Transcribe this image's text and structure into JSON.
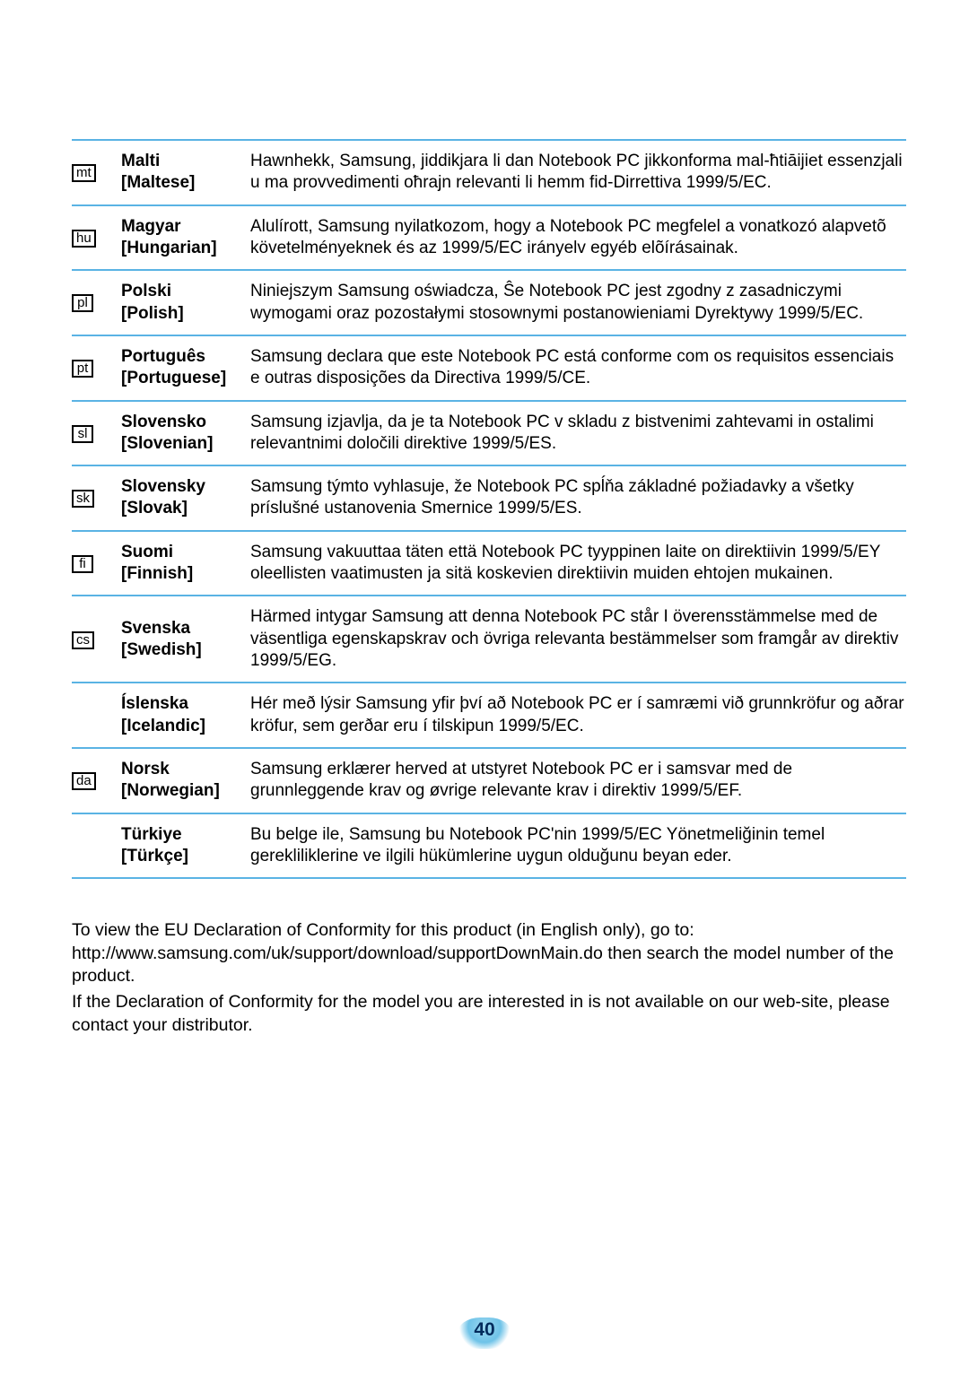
{
  "table": {
    "row_border_color": "#5ab3e4",
    "rows": [
      {
        "code": "mt",
        "icon_valign": "mid",
        "lang_native": "Malti",
        "lang_english": "[Maltese]",
        "text": "Hawnhekk, Samsung, jiddikjara li dan Notebook PC jikkonforma mal-ħtiāijiet essenzjali u ma provvedimenti oħrajn relevanti li hemm fid-Dirrettiva 1999/5/EC."
      },
      {
        "code": "hu",
        "icon_valign": "mid",
        "lang_native": "Magyar",
        "lang_english": "[Hungarian]",
        "text": "Alulírott, Samsung nyilatkozom, hogy a Notebook PC megfelel a vonatkozó alapvetõ követelményeknek és az 1999/5/EC irányelv egyéb elõírásainak."
      },
      {
        "code": "pl",
        "icon_valign": "mid",
        "lang_native": "Polski",
        "lang_english": "[Polish]",
        "text": "Niniejszym Samsung oświadcza, Ŝe Notebook PC jest zgodny z zasadniczymi wymogami oraz pozostałymi stosownymi postanowieniami Dyrektywy 1999/5/EC."
      },
      {
        "code": "pt",
        "icon_valign": "mid",
        "lang_native": "Português",
        "lang_english": "[Portuguese]",
        "text": "Samsung declara que este Notebook PC está conforme com os requisitos essenciais e outras disposições da Directiva 1999/5/CE."
      },
      {
        "code": "sl",
        "icon_valign": "mid",
        "lang_native": "Slovensko",
        "lang_english": "[Slovenian]",
        "text": "Samsung izjavlja, da je ta Notebook PC v skladu z bistvenimi zahtevami in ostalimi relevantnimi določili direktive 1999/5/ES."
      },
      {
        "code": "sk",
        "icon_valign": "mid",
        "lang_native": "Slovensky",
        "lang_english": "[Slovak]",
        "text": "Samsung týmto vyhlasuje, že Notebook PC spĺňa základné požiadavky a všetky príslušné ustanovenia Smernice 1999/5/ES."
      },
      {
        "code": "fi",
        "icon_valign": "mid",
        "lang_native": "Suomi",
        "lang_english": "[Finnish]",
        "text": "Samsung vakuuttaa täten että Notebook PC tyyppinen laite on direktiivin 1999/5/EY oleellisten vaatimusten ja sitä koskevien direktiivin muiden ehtojen mukainen."
      },
      {
        "code": "cs",
        "icon_valign": "mid",
        "lang_native": "Svenska",
        "lang_english": "[Swedish]",
        "text": "Härmed intygar Samsung att denna Notebook PC står I överensstämmelse med de väsentliga egenskapskrav och övriga relevanta bestämmelser som framgår av direktiv 1999/5/EG."
      },
      {
        "code": "",
        "icon_valign": "mid",
        "lang_native": "Íslenska",
        "lang_english": "[Icelandic]",
        "text": "Hér með lýsir Samsung yfir því að Notebook PC er í samræmi við grunnkröfur og aðrar kröfur, sem gerðar eru í tilskipun 1999/5/EC."
      },
      {
        "code": "da",
        "icon_valign": "mid",
        "lang_native": "Norsk",
        "lang_english": "[Norwegian]",
        "text": "Samsung erklærer herved at utstyret Notebook PC er i samsvar med de grunnleggende krav og øvrige relevante krav i direktiv 1999/5/EF."
      },
      {
        "code": "",
        "icon_valign": "mid",
        "lang_native": "Türkiye",
        "lang_english": "[Türkçe]",
        "text": "Bu belge ile, Samsung bu Notebook PC'nin 1999/5/EC Yönetmeliğinin temel gerekliliklerine ve ilgili hükümlerine uygun olduğunu beyan eder."
      }
    ]
  },
  "bottom": {
    "p1": "To view the EU Declaration of Conformity for this product (in English only), go to: http://www.samsung.com/uk/support/download/supportDownMain.do then search the model number of the product.",
    "p2": "If the Declaration of Conformity for the model you are interested in is not available on our web-site, please contact your distributor."
  },
  "page_number": "40"
}
